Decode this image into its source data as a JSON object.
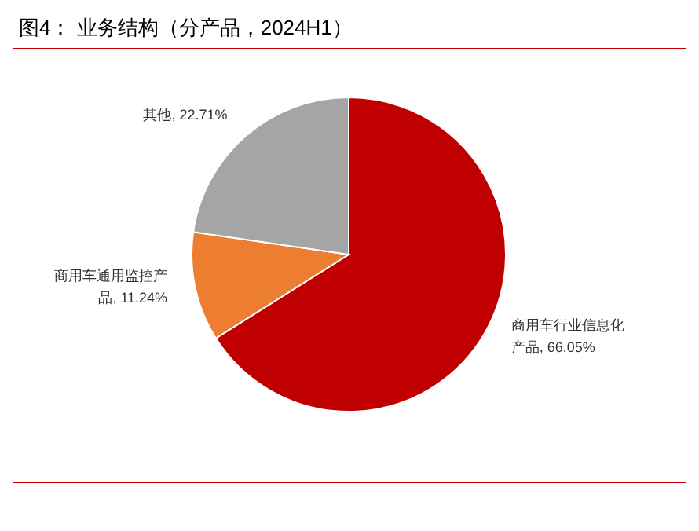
{
  "chart_data": {
    "type": "pie",
    "title": "图4：  业务结构（分产品，2024H1）",
    "categories": [
      "商用车行业信息化产品",
      "商用车通用监控产品",
      "其他"
    ],
    "values": [
      66.05,
      11.24,
      22.71
    ],
    "value_labels": [
      "66.05%",
      "11.24%",
      "22.71%"
    ],
    "colors": [
      "#c00000",
      "#ed7d31",
      "#a5a5a5"
    ]
  }
}
